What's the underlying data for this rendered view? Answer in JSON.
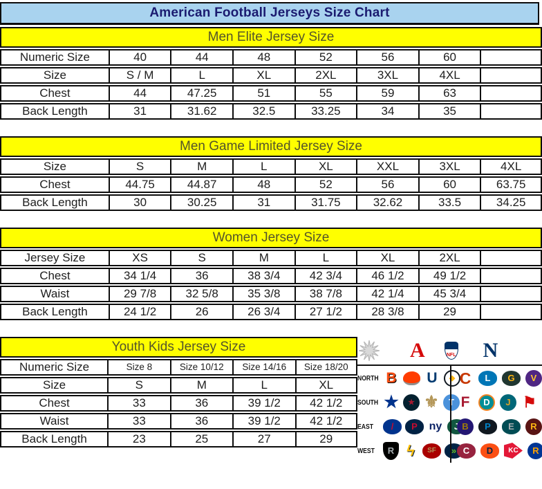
{
  "title": "American Football Jerseys Size Chart",
  "colors": {
    "title_bg": "#a9d3ef",
    "title_text": "#1b1b70",
    "band_bg": "#ffff00",
    "band_text": "#54542a",
    "border": "#0d0d0d",
    "cell_text": "#1d1d1d",
    "afc_red": "#d50a0a",
    "nfc_blue": "#013369"
  },
  "sections": [
    {
      "id": "men_elite",
      "header": "Men Elite Jersey Size",
      "rows": [
        [
          "Numeric Size",
          "40",
          "44",
          "48",
          "52",
          "56",
          "60",
          ""
        ],
        [
          "Size",
          "S / M",
          "L",
          "XL",
          "2XL",
          "3XL",
          "4XL",
          ""
        ],
        [
          "Chest",
          "44",
          "47.25",
          "51",
          "55",
          "59",
          "63",
          ""
        ],
        [
          "Back Length",
          "31",
          "31.62",
          "32.5",
          "33.25",
          "34",
          "35",
          ""
        ]
      ]
    },
    {
      "id": "men_game",
      "header": "Men Game Limited Jersey Size",
      "rows": [
        [
          "Size",
          "S",
          "M",
          "L",
          "XL",
          "XXL",
          "3XL",
          "4XL"
        ],
        [
          "Chest",
          "44.75",
          "44.87",
          "48",
          "52",
          "56",
          "60",
          "63.75"
        ],
        [
          "Back Length",
          "30",
          "30.25",
          "31",
          "31.75",
          "32.62",
          "33.5",
          "34.25"
        ]
      ]
    },
    {
      "id": "women",
      "header": "Women Jersey Size",
      "rows": [
        [
          "Jersey Size",
          "XS",
          "S",
          "M",
          "L",
          "XL",
          "2XL",
          ""
        ],
        [
          "Chest",
          "34 1/4",
          "36",
          "38 3/4",
          "42 3/4",
          "46 1/2",
          "49 1/2",
          ""
        ],
        [
          "Waist",
          "29 7/8",
          "32 5/8",
          "35 3/8",
          "38 7/8",
          "42 1/4",
          "45 3/4",
          ""
        ],
        [
          "Back Length",
          "24 1/2",
          "26",
          "26 3/4",
          "27 1/2",
          "28 3/8",
          "29",
          ""
        ]
      ]
    },
    {
      "id": "youth",
      "header": "Youth Kids Jersey Size",
      "rows": [
        [
          "Numeric Size",
          "Size 8",
          "Size 10/12",
          "Size 14/16",
          "Size 18/20"
        ],
        [
          "Size",
          "S",
          "M",
          "L",
          "XL"
        ],
        [
          "Chest",
          "33",
          "36",
          "39 1/2",
          "42 1/2"
        ],
        [
          "Waist",
          "33",
          "36",
          "39 1/2",
          "42 1/2"
        ],
        [
          "Back Length",
          "23",
          "25",
          "27",
          "29"
        ]
      ]
    }
  ],
  "logo_panel": {
    "header": {
      "starburst_icon": "starburst",
      "afc_letter": "A",
      "nfl_shield_text": "NFL",
      "nfc_letter": "N"
    },
    "rows": [
      {
        "division": "NORTH",
        "afc": [
          {
            "name": "cincinnati-bengals",
            "kind": "glyph",
            "text": "B",
            "color": "#fb4f14",
            "shadow": "1px 1px 0 #000",
            "size": 21
          },
          {
            "name": "cleveland-browns",
            "kind": "helmet",
            "text": "",
            "bg": "#ff3c00",
            "color": "#fff"
          },
          {
            "name": "indianapolis-colts",
            "kind": "glyph",
            "text": "U",
            "color": "#003a70",
            "size": 21
          },
          {
            "name": "pittsburgh-steelers",
            "kind": "circle",
            "text": "◆",
            "bg": "#ffffff",
            "color": "#ffb612",
            "border": "2px solid #101820",
            "size": 11
          }
        ],
        "nfc": [
          {
            "name": "chicago-bears",
            "kind": "glyph",
            "text": "C",
            "color": "#c83803",
            "size": 23
          },
          {
            "name": "detroit-lions",
            "kind": "oval",
            "text": "L",
            "bg": "#0076b6",
            "color": "#ffffff"
          },
          {
            "name": "green-bay-packers",
            "kind": "oval",
            "text": "G",
            "bg": "#203731",
            "color": "#ffb612"
          },
          {
            "name": "minnesota-vikings",
            "kind": "circle",
            "text": "V",
            "bg": "#4f2683",
            "color": "#ffc62f"
          }
        ]
      },
      {
        "division": "SOUTH",
        "afc": [
          {
            "name": "dallas-cowboys",
            "kind": "glyph",
            "text": "★",
            "color": "#00338d",
            "size": 24
          },
          {
            "name": "houston-texans",
            "kind": "circle",
            "text": "★",
            "bg": "#03202f",
            "color": "#a71930",
            "size": 11
          },
          {
            "name": "new-orleans-saints",
            "kind": "glyph",
            "text": "⚜",
            "color": "#b49759",
            "size": 24
          },
          {
            "name": "tennessee-titans",
            "kind": "circle",
            "text": "T",
            "bg": "#4b92db",
            "color": "#ffffff"
          }
        ],
        "nfc": [
          {
            "name": "atlanta-falcons",
            "kind": "glyph",
            "text": "F",
            "color": "#a71930",
            "size": 21
          },
          {
            "name": "miami-dolphins",
            "kind": "circle",
            "text": "D",
            "bg": "#008e97",
            "color": "#ffffff",
            "border": "2px solid #f58220"
          },
          {
            "name": "jacksonville-jaguars",
            "kind": "circle",
            "text": "J",
            "bg": "#006778",
            "color": "#d7a22a"
          },
          {
            "name": "tampa-bay-buccaneers",
            "kind": "glyph",
            "text": "⚑",
            "color": "#d50a0a",
            "size": 22
          }
        ]
      },
      {
        "division": "EAST",
        "afc": [
          {
            "name": "buffalo-bills",
            "kind": "oval",
            "text": "/",
            "bg": "#00338d",
            "color": "#c60c30"
          },
          {
            "name": "new-england-patriots",
            "kind": "oval",
            "text": "P",
            "bg": "#002244",
            "color": "#c60c30"
          },
          {
            "name": "new-york-giants",
            "kind": "glyph",
            "text": "ny",
            "color": "#0b2265",
            "size": 16
          },
          {
            "name": "new-york-jets",
            "kind": "oval",
            "text": "J",
            "bg": "#125740",
            "color": "#ffffff"
          }
        ],
        "nfc": [
          {
            "name": "baltimore-ravens",
            "kind": "circle",
            "text": "B",
            "bg": "#241773",
            "color": "#9e7c0c"
          },
          {
            "name": "carolina-panthers",
            "kind": "oval",
            "text": "P",
            "bg": "#101820",
            "color": "#0085ca"
          },
          {
            "name": "philadelphia-eagles",
            "kind": "oval",
            "text": "E",
            "bg": "#004c54",
            "color": "#a5acaf"
          },
          {
            "name": "washington-redskins",
            "kind": "circle",
            "text": "R",
            "bg": "#5a1414",
            "color": "#ffb612"
          }
        ]
      },
      {
        "division": "WEST",
        "afc": [
          {
            "name": "oakland-raiders",
            "kind": "shield",
            "text": "R",
            "bg": "#000000",
            "color": "#a5acaf"
          },
          {
            "name": "san-diego-chargers",
            "kind": "glyph",
            "text": "ϟ",
            "color": "#ffc20e",
            "shadow": "1px 1px 0 #0a2240",
            "size": 22
          },
          {
            "name": "san-francisco-49ers",
            "kind": "oval",
            "text": "SF",
            "bg": "#aa0000",
            "color": "#b3995d",
            "size": 10
          },
          {
            "name": "seattle-seahawks",
            "kind": "oval",
            "text": "»",
            "bg": "#002244",
            "color": "#69be28"
          }
        ],
        "nfc": [
          {
            "name": "arizona-cardinals",
            "kind": "oval",
            "text": "C",
            "bg": "#97233f",
            "color": "#ffffff"
          },
          {
            "name": "denver-broncos",
            "kind": "oval",
            "text": "D",
            "bg": "#fb4f14",
            "color": "#002244"
          },
          {
            "name": "kansas-city-chiefs",
            "kind": "arrow",
            "text": "KC",
            "bg": "#e31837",
            "color": "#ffffff",
            "size": 10
          },
          {
            "name": "st-louis-rams",
            "kind": "circle",
            "text": "R",
            "bg": "#003594",
            "color": "#ffa300"
          }
        ]
      }
    ]
  }
}
